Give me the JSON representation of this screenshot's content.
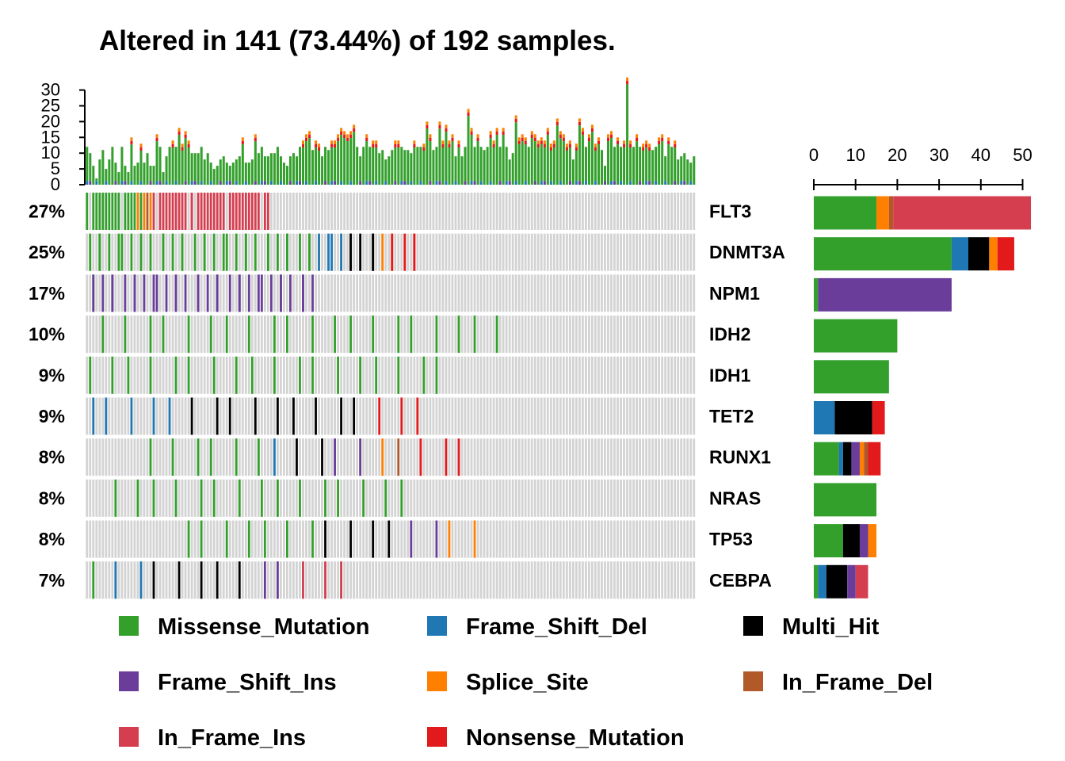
{
  "chart_data": {
    "type": "heatmap",
    "title": "Altered in 141 (73.44%) of 192 samples.",
    "n_samples": 192,
    "colors": {
      "Missense_Mutation": "#33a02c",
      "Frame_Shift_Del": "#1f78b4",
      "Multi_Hit": "#000000",
      "Frame_Shift_Ins": "#6a3d9a",
      "Splice_Site": "#ff7f00",
      "In_Frame_Del": "#b15928",
      "In_Frame_Ins": "#d53e4f",
      "Nonsense_Mutation": "#e31a1c",
      "none": "#d3d3d3"
    },
    "legend": {
      "position": "bottom",
      "items": [
        {
          "label": "Missense_Mutation",
          "key": "Missense_Mutation"
        },
        {
          "label": "Frame_Shift_Del",
          "key": "Frame_Shift_Del"
        },
        {
          "label": "Multi_Hit",
          "key": "Multi_Hit"
        },
        {
          "label": "Frame_Shift_Ins",
          "key": "Frame_Shift_Ins"
        },
        {
          "label": "Splice_Site",
          "key": "Splice_Site"
        },
        {
          "label": "In_Frame_Del",
          "key": "In_Frame_Del"
        },
        {
          "label": "In_Frame_Ins",
          "key": "In_Frame_Ins"
        },
        {
          "label": "Nonsense_Mutation",
          "key": "Nonsense_Mutation"
        }
      ]
    },
    "genes": [
      {
        "name": "FLT3",
        "pct": "27%",
        "counts": {
          "In_Frame_Del": 1,
          "In_Frame_Ins": 33,
          "Missense_Mutation": 15,
          "Splice_Site": 3
        }
      },
      {
        "name": "DNMT3A",
        "pct": "25%",
        "counts": {
          "Frame_Shift_Del": 4,
          "Missense_Mutation": 33,
          "Multi_Hit": 5,
          "Nonsense_Mutation": 4,
          "Splice_Site": 2
        }
      },
      {
        "name": "NPM1",
        "pct": "17%",
        "counts": {
          "Frame_Shift_Ins": 32,
          "Missense_Mutation": 1
        }
      },
      {
        "name": "IDH2",
        "pct": "10%",
        "counts": {
          "Missense_Mutation": 20
        }
      },
      {
        "name": "IDH1",
        "pct": "9%",
        "counts": {
          "Missense_Mutation": 18
        }
      },
      {
        "name": "TET2",
        "pct": "9%",
        "counts": {
          "Frame_Shift_Del": 5,
          "Multi_Hit": 9,
          "Nonsense_Mutation": 3
        }
      },
      {
        "name": "RUNX1",
        "pct": "8%",
        "counts": {
          "Frame_Shift_Del": 1,
          "Frame_Shift_Ins": 2,
          "In_Frame_Del": 1,
          "Missense_Mutation": 6,
          "Multi_Hit": 2,
          "Nonsense_Mutation": 3,
          "Splice_Site": 1
        }
      },
      {
        "name": "NRAS",
        "pct": "8%",
        "counts": {
          "Missense_Mutation": 15
        }
      },
      {
        "name": "TP53",
        "pct": "8%",
        "counts": {
          "Frame_Shift_Ins": 2,
          "Missense_Mutation": 7,
          "Multi_Hit": 4,
          "Splice_Site": 2
        }
      },
      {
        "name": "CEBPA",
        "pct": "7%",
        "counts": {
          "Frame_Shift_Del": 2,
          "Frame_Shift_Ins": 2,
          "In_Frame_Ins": 3,
          "Missense_Mutation": 1,
          "Multi_Hit": 5
        }
      }
    ],
    "top_bar": {
      "ylim": [
        0,
        30
      ],
      "ticks": [
        0,
        5,
        10,
        15,
        20,
        25,
        30
      ],
      "altered_samples": 141,
      "tmb": [
        12,
        10,
        6,
        2,
        8,
        11,
        5,
        8,
        12,
        7,
        4,
        12,
        6,
        4,
        15,
        6,
        7,
        13,
        7,
        10,
        6,
        6,
        16,
        12,
        4,
        9,
        12,
        14,
        12,
        18,
        13,
        17,
        14,
        10,
        10,
        10,
        12,
        8,
        10,
        7,
        5,
        6,
        8,
        9,
        7,
        6,
        7,
        8,
        9,
        15,
        7,
        7,
        8,
        16,
        10,
        12,
        9,
        9,
        10,
        10,
        12,
        9,
        7,
        6,
        9,
        10,
        9,
        12,
        14,
        16,
        17,
        11,
        14,
        13,
        9,
        12,
        11,
        14,
        14,
        16,
        18,
        17,
        16,
        17,
        19,
        12,
        9,
        12,
        16,
        12,
        14,
        14,
        10,
        11,
        8,
        9,
        11,
        14,
        14,
        12,
        11,
        11,
        10,
        14,
        12,
        12,
        13,
        20,
        16,
        11,
        12,
        20,
        14,
        19,
        14,
        16,
        9,
        14,
        9,
        12,
        24,
        18,
        12,
        16,
        12,
        11,
        12,
        17,
        14,
        18,
        12,
        18,
        12,
        8,
        10,
        22,
        15,
        16,
        15,
        12,
        17,
        16,
        14,
        15,
        14,
        18,
        13,
        14,
        21,
        17,
        16,
        13,
        14,
        8,
        13,
        21,
        18,
        12,
        16,
        19,
        13,
        15,
        11,
        6,
        16,
        17,
        12,
        15,
        12,
        14,
        34,
        14,
        12,
        16,
        12,
        13,
        14,
        13,
        11,
        12,
        15,
        16,
        9,
        15,
        12,
        14,
        8,
        9,
        10,
        8,
        7,
        9
      ],
      "top_series_note": "Altered in 141 (73.44%) of 192 samples."
    },
    "side_bar": {
      "xlim": [
        0,
        50
      ],
      "ticks": [
        0,
        10,
        20,
        30,
        40,
        50
      ]
    }
  }
}
